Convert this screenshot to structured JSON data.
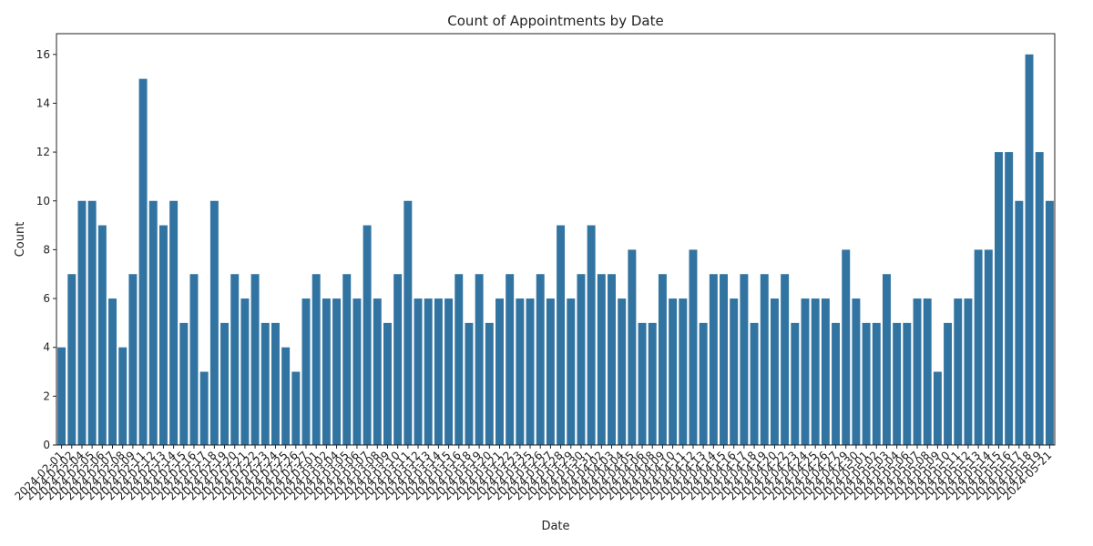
{
  "chart_data": {
    "type": "bar",
    "title": "Count of Appointments by Date",
    "x_label": "Date",
    "y_label": "Count",
    "color": "#3274a1",
    "categories": [
      "2024-02-01",
      "2024-02-02",
      "2024-02-04",
      "2024-02-05",
      "2024-02-06",
      "2024-02-07",
      "2024-02-08",
      "2024-02-09",
      "2024-02-11",
      "2024-02-12",
      "2024-02-13",
      "2024-02-14",
      "2024-02-15",
      "2024-02-16",
      "2024-02-17",
      "2024-02-18",
      "2024-02-19",
      "2024-02-20",
      "2024-02-21",
      "2024-02-22",
      "2024-02-23",
      "2024-02-24",
      "2024-02-25",
      "2024-02-26",
      "2024-02-27",
      "2024-03-01",
      "2024-03-02",
      "2024-03-04",
      "2024-03-05",
      "2024-03-06",
      "2024-03-07",
      "2024-03-08",
      "2024-03-09",
      "2024-03-10",
      "2024-03-11",
      "2024-03-12",
      "2024-03-13",
      "2024-03-14",
      "2024-03-15",
      "2024-03-16",
      "2024-03-18",
      "2024-03-19",
      "2024-03-20",
      "2024-03-21",
      "2024-03-22",
      "2024-03-23",
      "2024-03-25",
      "2024-03-26",
      "2024-03-27",
      "2024-03-28",
      "2024-03-29",
      "2024-03-30",
      "2024-03-31",
      "2024-04-02",
      "2024-04-03",
      "2024-04-04",
      "2024-04-05",
      "2024-04-06",
      "2024-04-08",
      "2024-04-09",
      "2024-04-10",
      "2024-04-11",
      "2024-04-12",
      "2024-04-13",
      "2024-04-14",
      "2024-04-15",
      "2024-04-16",
      "2024-04-17",
      "2024-04-18",
      "2024-04-19",
      "2024-04-20",
      "2024-04-22",
      "2024-04-23",
      "2024-04-24",
      "2024-04-25",
      "2024-04-26",
      "2024-04-27",
      "2024-04-29",
      "2024-04-30",
      "2024-05-01",
      "2024-05-02",
      "2024-05-03",
      "2024-05-04",
      "2024-05-06",
      "2024-05-07",
      "2024-05-08",
      "2024-05-09",
      "2024-05-10",
      "2024-05-11",
      "2024-05-12",
      "2024-05-13",
      "2024-05-14",
      "2024-05-15",
      "2024-05-16",
      "2024-05-17",
      "2024-05-18",
      "2024-05-19",
      "2024-05-21"
    ],
    "values": [
      4,
      7,
      10,
      10,
      9,
      6,
      4,
      7,
      15,
      10,
      9,
      10,
      5,
      7,
      3,
      10,
      5,
      7,
      6,
      7,
      5,
      5,
      4,
      3,
      6,
      7,
      6,
      6,
      7,
      6,
      9,
      6,
      5,
      7,
      10,
      6,
      6,
      6,
      6,
      7,
      5,
      7,
      5,
      6,
      7,
      6,
      6,
      7,
      6,
      9,
      6,
      7,
      9,
      7,
      7,
      6,
      8,
      5,
      5,
      7,
      6,
      6,
      8,
      5,
      7,
      7,
      6,
      7,
      5,
      7,
      6,
      7,
      5,
      6,
      6,
      6,
      5,
      8,
      6,
      5,
      5,
      7,
      5,
      5,
      6,
      6,
      3,
      5,
      6,
      6,
      8,
      8,
      12,
      12,
      10,
      16,
      12,
      10
    ],
    "ylim": [
      0,
      16.85
    ],
    "yticks": [
      0,
      2,
      4,
      6,
      8,
      10,
      12,
      14,
      16
    ]
  }
}
